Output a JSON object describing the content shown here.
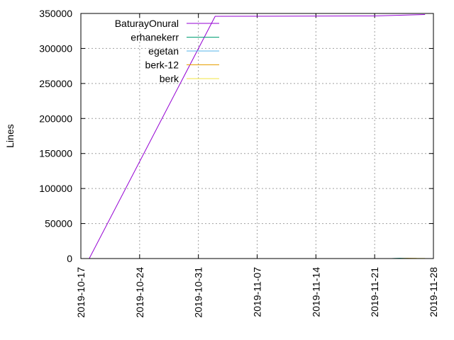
{
  "chart_data": {
    "type": "line",
    "ylabel": "Lines",
    "xlim": [
      "2019-10-17",
      "2019-11-28"
    ],
    "ylim": [
      0,
      350000
    ],
    "x_ticks": [
      "2019-10-17",
      "2019-10-24",
      "2019-10-31",
      "2019-11-07",
      "2019-11-14",
      "2019-11-21",
      "2019-11-28"
    ],
    "y_ticks": [
      0,
      50000,
      100000,
      150000,
      200000,
      250000,
      300000,
      350000
    ],
    "grid": true,
    "legend": "top-left",
    "series": [
      {
        "name": "BaturayOnural",
        "color": "#9400d3",
        "points": [
          [
            "2019-10-18",
            0
          ],
          [
            "2019-11-02",
            346000
          ],
          [
            "2019-11-21",
            346500
          ],
          [
            "2019-11-27",
            348500
          ]
        ]
      },
      {
        "name": "erhanekerr",
        "color": "#009e73",
        "points": [
          [
            "2019-11-23",
            0
          ],
          [
            "2019-11-24",
            500
          ],
          [
            "2019-11-25",
            200
          ]
        ]
      },
      {
        "name": "egetan",
        "color": "#56b4e9",
        "points": [
          [
            "2019-11-23",
            0
          ],
          [
            "2019-11-25",
            300
          ],
          [
            "2019-11-26",
            100
          ]
        ]
      },
      {
        "name": "berk-12",
        "color": "#e69f00",
        "points": [
          [
            "2019-11-24",
            0
          ],
          [
            "2019-11-25",
            400
          ],
          [
            "2019-11-26",
            300
          ]
        ]
      },
      {
        "name": "berk",
        "color": "#f0e442",
        "points": [
          [
            "2019-11-25",
            0
          ],
          [
            "2019-11-26",
            300
          ],
          [
            "2019-11-27",
            200
          ]
        ]
      }
    ]
  }
}
